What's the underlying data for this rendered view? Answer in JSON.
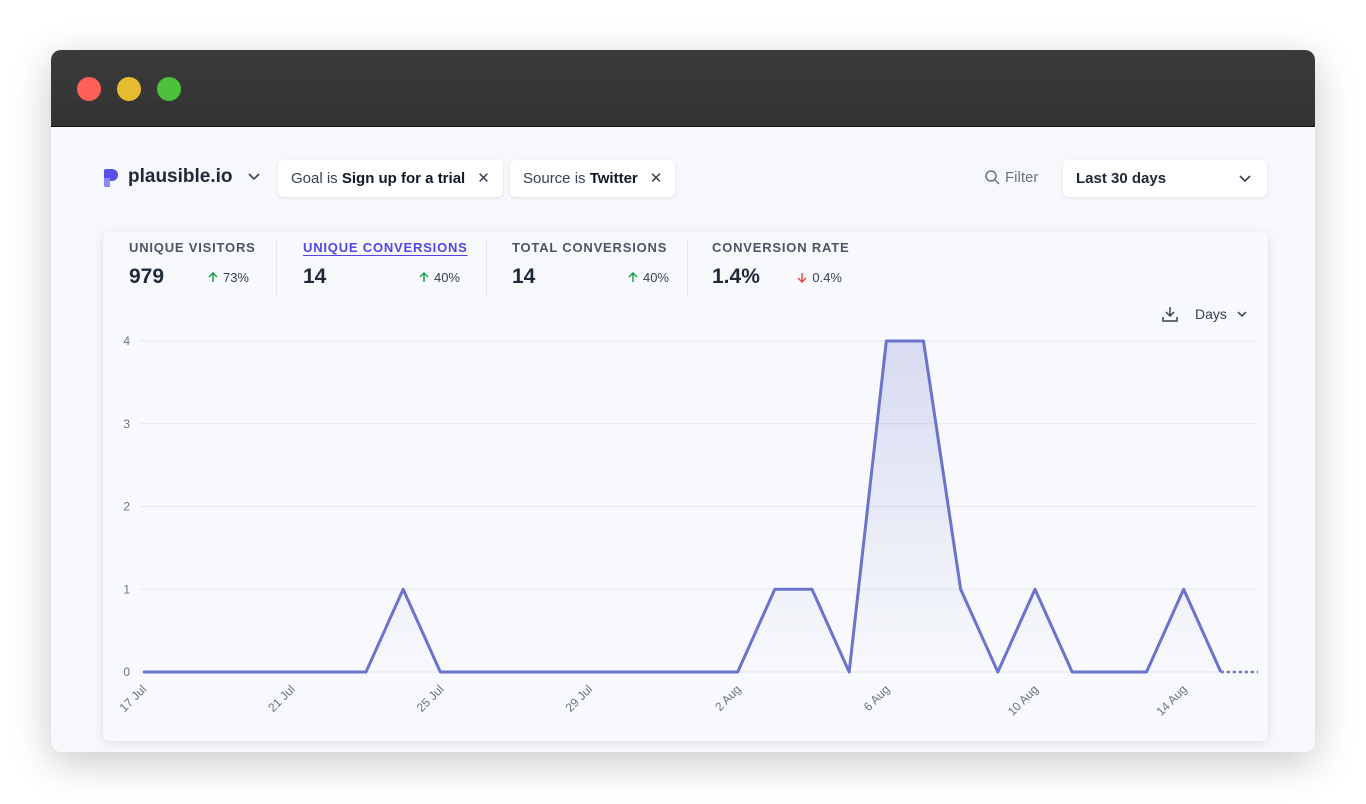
{
  "header": {
    "site": "plausible.io",
    "filters": [
      {
        "prefix": "Goal is",
        "value": "Sign up for a trial"
      },
      {
        "prefix": "Source is",
        "value": "Twitter"
      }
    ],
    "filter_button": "Filter",
    "period": "Last 30 days"
  },
  "metrics": [
    {
      "label": "UNIQUE VISITORS",
      "value": "979",
      "change": "73%",
      "direction": "up",
      "active": false
    },
    {
      "label": "UNIQUE CONVERSIONS",
      "value": "14",
      "change": "40%",
      "direction": "up",
      "active": true
    },
    {
      "label": "TOTAL CONVERSIONS",
      "value": "14",
      "change": "40%",
      "direction": "up",
      "active": false
    },
    {
      "label": "CONVERSION RATE",
      "value": "1.4%",
      "change": "0.4%",
      "direction": "down",
      "active": false
    }
  ],
  "interval": "Days",
  "chart_data": {
    "type": "line",
    "color": "#6b73cc",
    "categories": [
      "17 Jul",
      null,
      null,
      null,
      "21 Jul",
      null,
      null,
      null,
      "25 Jul",
      null,
      null,
      null,
      "29 Jul",
      null,
      null,
      null,
      "2 Aug",
      null,
      null,
      null,
      "6 Aug",
      null,
      null,
      null,
      "10 Aug",
      null,
      null,
      null,
      "14 Aug",
      null,
      null
    ],
    "values": [
      0,
      0,
      0,
      0,
      0,
      0,
      0,
      1,
      0,
      0,
      0,
      0,
      0,
      0,
      0,
      0,
      0,
      1,
      1,
      0,
      4,
      4,
      1,
      0,
      1,
      0,
      0,
      0,
      1,
      0,
      0
    ],
    "ylim": [
      0,
      4
    ],
    "yticks": [
      0,
      1,
      2,
      3,
      4
    ],
    "grid": true,
    "dashed_last_segment": true
  }
}
